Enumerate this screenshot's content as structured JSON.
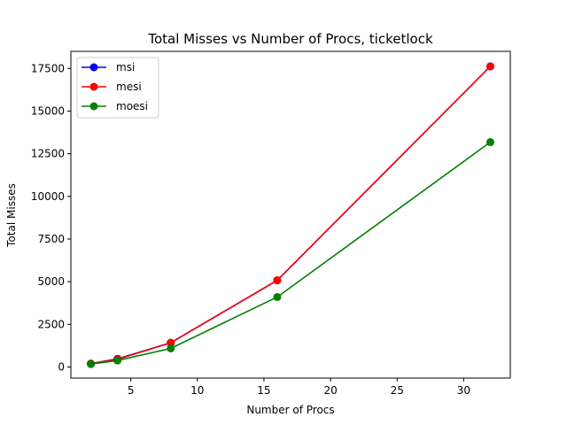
{
  "chart_data": {
    "type": "line",
    "title": "Total Misses vs Number of Procs, ticketlock",
    "xlabel": "Number of Procs",
    "ylabel": "Total Misses",
    "x": [
      2,
      4,
      8,
      16,
      32
    ],
    "xlim": [
      0.5,
      33.5
    ],
    "ylim": [
      -650,
      18500
    ],
    "xticks": [
      5,
      10,
      15,
      20,
      25,
      30
    ],
    "yticks": [
      0,
      2500,
      5000,
      7500,
      10000,
      12500,
      15000,
      17500
    ],
    "grid": false,
    "legend_position": "top-left",
    "series": [
      {
        "name": "msi",
        "color": "#0000ff",
        "values": [
          200,
          480,
          1420,
          5080,
          17620
        ]
      },
      {
        "name": "mesi",
        "color": "#ff0000",
        "values": [
          200,
          450,
          1420,
          5080,
          17620
        ]
      },
      {
        "name": "moesi",
        "color": "#008000",
        "values": [
          170,
          380,
          1090,
          4100,
          13180
        ]
      }
    ]
  }
}
